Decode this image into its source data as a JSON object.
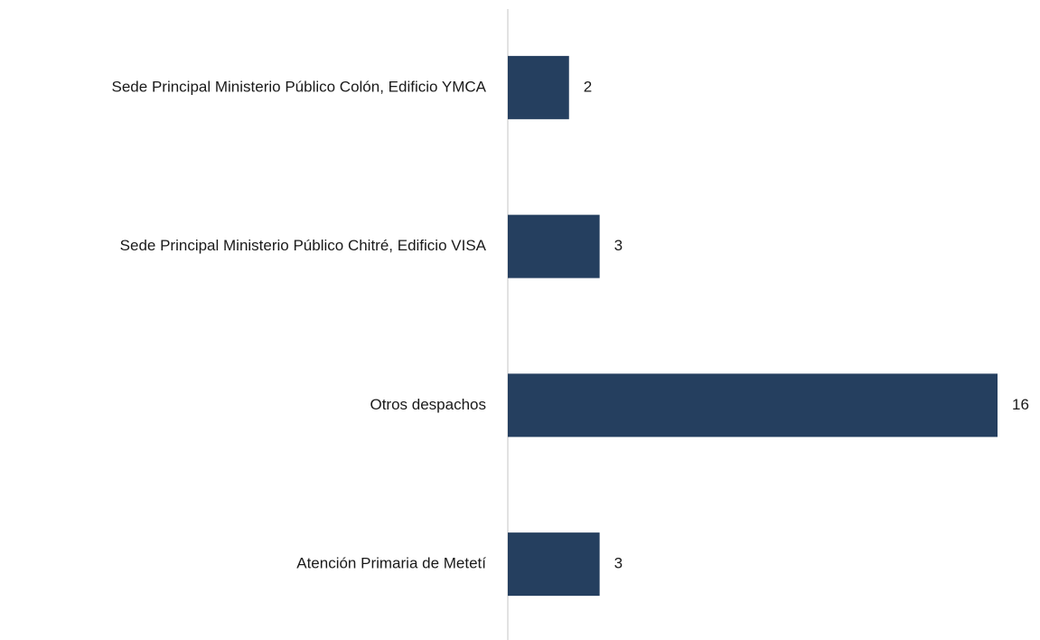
{
  "chart_data": {
    "type": "bar",
    "orientation": "horizontal",
    "categories": [
      "Sede Principal Ministerio Público Colón, Edificio YMCA",
      "Sede Principal Ministerio Público Chitré, Edificio VISA",
      "Otros despachos",
      "Atención Primaria de Metetí"
    ],
    "values": [
      2,
      3,
      16,
      3
    ],
    "color": "#253f5f"
  }
}
